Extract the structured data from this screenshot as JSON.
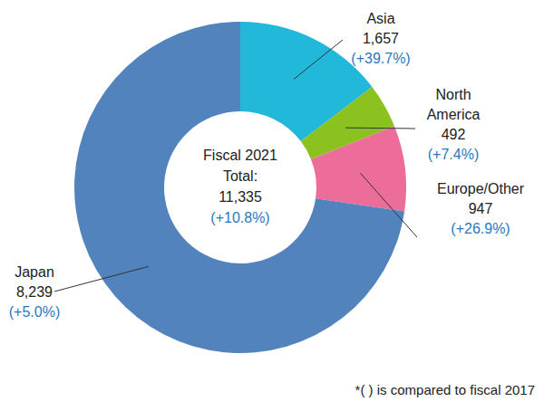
{
  "chart_data": {
    "type": "pie",
    "categories": [
      "Asia",
      "North America",
      "Europe/Other",
      "Japan"
    ],
    "values": [
      1657,
      492,
      947,
      8239
    ],
    "value_labels": [
      "1,657",
      "492",
      "947",
      "8,239"
    ],
    "change_labels": [
      "(+39.7%)",
      "(+7.4%)",
      "(+26.9%)",
      "(+5.0%)"
    ],
    "colors": [
      "#21b8d9",
      "#8cc21f",
      "#ec6d99",
      "#5383bd"
    ],
    "center_text": [
      "Fiscal 2021",
      "Total:",
      "11,335"
    ],
    "center_change_label": "(+10.8%)",
    "note": "*( ) is compared to fiscal 2017"
  }
}
